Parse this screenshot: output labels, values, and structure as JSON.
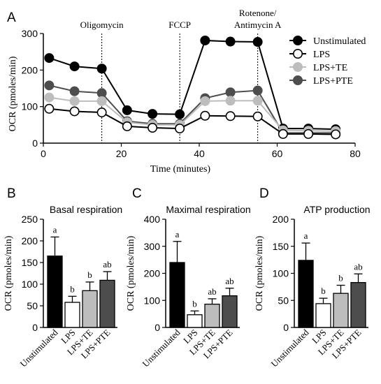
{
  "chart_data": [
    {
      "type": "line",
      "panel_label": "A",
      "title": "",
      "xlabel": "Time (minutes)",
      "ylabel": "OCR (pmoles/min)",
      "xlim": [
        0,
        80
      ],
      "ylim": [
        0,
        300
      ],
      "xticks": [
        "0",
        "20",
        "40",
        "60",
        "80"
      ],
      "yticks": [
        "0",
        "100",
        "200",
        "300"
      ],
      "grid": false,
      "legend": "right",
      "injections": [
        {
          "label": "Oligomycin",
          "time": 15
        },
        {
          "label": "FCCP",
          "time": 35
        },
        {
          "label": "Rotenone/ Antimycin A",
          "time": 55
        }
      ],
      "x": [
        1.5,
        8,
        15,
        21.5,
        28,
        35,
        41.5,
        48,
        55,
        61.5,
        68,
        75
      ],
      "series": [
        {
          "name": "Unstimulated",
          "color": "#000000",
          "fill": "#000000",
          "values": [
            233,
            210,
            204,
            90,
            80,
            79,
            281,
            278,
            277,
            40,
            40,
            38
          ]
        },
        {
          "name": "LPS",
          "color": "#000000",
          "fill": "#ffffff",
          "values": [
            94,
            87,
            84,
            46,
            42,
            40,
            75,
            74,
            73,
            25,
            25,
            24
          ]
        },
        {
          "name": "LPS+TE",
          "color": "#bdbdbd",
          "fill": "#bdbdbd",
          "values": [
            125,
            115,
            115,
            57,
            50,
            50,
            115,
            116,
            116,
            35,
            34,
            33
          ]
        },
        {
          "name": "LPS+PTE",
          "color": "#4d4d4d",
          "fill": "#4d4d4d",
          "values": [
            158,
            142,
            137,
            60,
            53,
            53,
            123,
            139,
            144,
            28,
            28,
            28
          ]
        }
      ]
    },
    {
      "type": "bar",
      "panel_label": "B",
      "title": "Basal respiration",
      "ylabel": "OCR (pmoles/min)",
      "ylim": [
        0,
        250
      ],
      "yticks": [
        "0",
        "50",
        "100",
        "150",
        "200",
        "250"
      ],
      "categories": [
        "Unstimulated",
        "LPS",
        "LPS+TE",
        "LPS+PTE"
      ],
      "values": [
        165,
        58,
        85,
        109
      ],
      "errors": [
        44,
        14,
        20,
        20
      ],
      "letters": [
        "a",
        "b",
        "b",
        "ab"
      ],
      "colors": [
        "#000000",
        "#ffffff",
        "#bdbdbd",
        "#4d4d4d"
      ]
    },
    {
      "type": "bar",
      "panel_label": "C",
      "title": "Maximal respiration",
      "ylabel": "OCR (pmoles/min)",
      "ylim": [
        0,
        400
      ],
      "yticks": [
        "0",
        "100",
        "200",
        "300",
        "400"
      ],
      "categories": [
        "Unstimulated",
        "LPS",
        "LPS+TE",
        "LPS+PTE"
      ],
      "values": [
        240,
        47,
        86,
        117
      ],
      "errors": [
        78,
        14,
        20,
        28
      ],
      "letters": [
        "a",
        "b",
        "ab",
        "ab"
      ],
      "colors": [
        "#000000",
        "#ffffff",
        "#bdbdbd",
        "#4d4d4d"
      ]
    },
    {
      "type": "bar",
      "panel_label": "D",
      "title": "ATP production",
      "ylabel": "OCR (pmoles/min)",
      "ylim": [
        0,
        200
      ],
      "yticks": [
        "0",
        "50",
        "100",
        "150",
        "200"
      ],
      "categories": [
        "Unstimulated",
        "LPS",
        "LPS+TE",
        "LPS+PTE"
      ],
      "values": [
        124,
        44,
        63,
        83
      ],
      "errors": [
        32,
        10,
        15,
        16
      ],
      "letters": [
        "a",
        "b",
        "b",
        "ab"
      ],
      "colors": [
        "#000000",
        "#ffffff",
        "#bdbdbd",
        "#4d4d4d"
      ]
    }
  ]
}
